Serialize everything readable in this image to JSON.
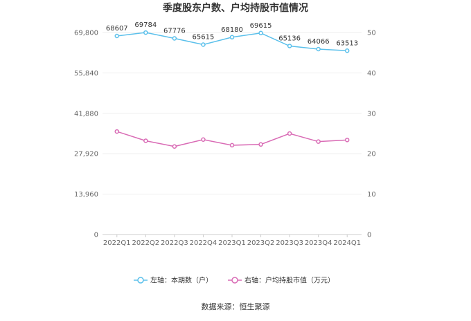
{
  "chart_data": {
    "type": "line",
    "title": "季度股东户数、户均持股市值情况",
    "categories": [
      "2022Q1",
      "2022Q2",
      "2022Q3",
      "2022Q4",
      "2023Q1",
      "2023Q2",
      "2023Q3",
      "2023Q4",
      "2024Q1"
    ],
    "left_axis": {
      "min": 0,
      "max": 69800,
      "ticks": [
        "0",
        "13,960",
        "27,920",
        "41,880",
        "55,840",
        "69,800"
      ]
    },
    "right_axis": {
      "min": 0,
      "max": 50,
      "ticks": [
        "0",
        "10",
        "20",
        "30",
        "40",
        "50"
      ]
    },
    "series": [
      {
        "name": "左轴：本期数（户）",
        "axis": "left",
        "color": "#5bc0eb",
        "values": [
          68607,
          69784,
          67776,
          65615,
          68180,
          69615,
          65136,
          64066,
          63513
        ],
        "labels": [
          "68607",
          "69784",
          "67776",
          "65615",
          "68180",
          "69615",
          "65136",
          "64066",
          "63513"
        ]
      },
      {
        "name": "右轴：户均持股市值（万元）",
        "axis": "right",
        "color": "#d96bb5",
        "values": [
          25.5,
          23.2,
          21.8,
          23.5,
          22.1,
          22.3,
          25.0,
          23.0,
          23.4
        ]
      }
    ],
    "grid": true,
    "legend_position": "bottom",
    "source": "数据来源：恒生聚源"
  }
}
